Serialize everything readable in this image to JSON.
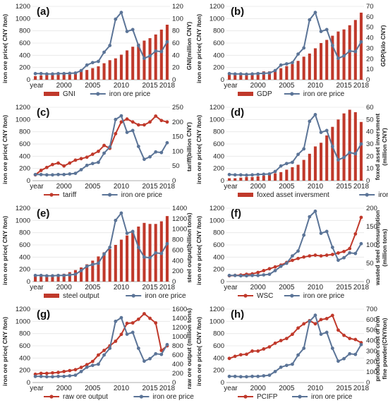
{
  "colors": {
    "red": "#c0392b",
    "blue": "#5b7497",
    "grid": "#e6e6e6"
  },
  "chart_data": [
    {
      "panel": "(a)",
      "type": "bar+line",
      "x_ticks": [
        "year",
        "2000",
        "2005",
        "2010",
        "2015",
        "2018"
      ],
      "left_axis": {
        "label": "iron ore price( CNY /ton)",
        "ticks": [
          "0",
          "200",
          "400",
          "600",
          "800",
          "1000",
          "1200"
        ],
        "range": [
          0,
          1200
        ]
      },
      "right_axis": {
        "label": "GNI(million CNY)",
        "ticks": [
          "0",
          "20",
          "40",
          "60",
          "80",
          "100",
          "120"
        ],
        "range": [
          0,
          120
        ]
      },
      "years": [
        1995,
        1996,
        1997,
        1998,
        1999,
        2000,
        2001,
        2002,
        2003,
        2004,
        2005,
        2006,
        2007,
        2008,
        2009,
        2010,
        2011,
        2012,
        2013,
        2014,
        2015,
        2016,
        2017,
        2018
      ],
      "series": [
        {
          "name": "GNI",
          "kind": "bar",
          "axis": "right",
          "values": [
            6,
            7,
            8,
            8,
            9,
            10,
            11,
            12,
            14,
            16,
            19,
            22,
            27,
            32,
            35,
            41,
            48,
            54,
            59,
            64,
            68,
            74,
            82,
            90
          ]
        },
        {
          "name": "iron ore price",
          "kind": "line",
          "axis": "left",
          "values": [
            100,
            100,
            95,
            95,
            100,
            100,
            105,
            110,
            150,
            240,
            280,
            300,
            450,
            560,
            990,
            1100,
            790,
            820,
            560,
            350,
            390,
            470,
            460,
            620
          ]
        }
      ]
    },
    {
      "panel": "(b)",
      "type": "bar+line",
      "x_ticks": [
        "year",
        "2000",
        "2005",
        "2010",
        "2015",
        "2018"
      ],
      "left_axis": {
        "label": "iron ore price( CNY /ton)",
        "ticks": [
          "0",
          "200",
          "400",
          "600",
          "800",
          "1000",
          "1200"
        ],
        "range": [
          0,
          1200
        ]
      },
      "right_axis": {
        "label": "GDP(kilo CNY)",
        "ticks": [
          "0",
          "10",
          "20",
          "30",
          "40",
          "50",
          "60",
          "70"
        ],
        "range": [
          0,
          70
        ]
      },
      "years": [
        1995,
        1996,
        1997,
        1998,
        1999,
        2000,
        2001,
        2002,
        2003,
        2004,
        2005,
        2006,
        2007,
        2008,
        2009,
        2010,
        2011,
        2012,
        2013,
        2014,
        2015,
        2016,
        2017,
        2018
      ],
      "series": [
        {
          "name": "GDP",
          "kind": "bar",
          "axis": "right",
          "values": [
            5,
            5,
            6,
            6,
            6,
            7,
            8,
            8,
            9,
            11,
            13,
            15,
            18,
            22,
            25,
            30,
            35,
            38,
            42,
            46,
            48,
            52,
            57,
            64
          ]
        },
        {
          "name": "iron ore price",
          "kind": "line",
          "axis": "left",
          "values": [
            100,
            95,
            95,
            90,
            95,
            100,
            105,
            110,
            150,
            240,
            260,
            280,
            420,
            520,
            980,
            1100,
            790,
            820,
            560,
            350,
            390,
            470,
            460,
            620
          ]
        }
      ]
    },
    {
      "panel": "(c)",
      "type": "line+line",
      "x_ticks": [
        "year",
        "2000",
        "2005",
        "2010",
        "2015",
        "2018"
      ],
      "left_axis": {
        "label": "iron ore price( CNY /ton)",
        "ticks": [
          "0",
          "200",
          "400",
          "600",
          "800",
          "1000",
          "1200"
        ],
        "range": [
          0,
          1200
        ]
      },
      "right_axis": {
        "label": "tariff(billion CNY)",
        "ticks": [
          "0",
          "50",
          "100",
          "150",
          "200",
          "250"
        ],
        "range": [
          0,
          250
        ]
      },
      "years": [
        1995,
        1996,
        1997,
        1998,
        1999,
        2000,
        2001,
        2002,
        2003,
        2004,
        2005,
        2006,
        2007,
        2008,
        2009,
        2010,
        2011,
        2012,
        2013,
        2014,
        2015,
        2016,
        2017,
        2018
      ],
      "series": [
        {
          "name": "tariff",
          "kind": "line",
          "axis": "right",
          "values": [
            20,
            35,
            45,
            55,
            60,
            50,
            60,
            70,
            75,
            80,
            90,
            100,
            120,
            110,
            160,
            200,
            210,
            200,
            190,
            190,
            200,
            220,
            205,
            200
          ]
        },
        {
          "name": "iron ore price",
          "kind": "line",
          "axis": "left",
          "values": [
            100,
            100,
            95,
            95,
            100,
            100,
            110,
            120,
            180,
            250,
            280,
            300,
            450,
            550,
            1000,
            1060,
            790,
            820,
            560,
            350,
            390,
            470,
            460,
            620
          ]
        }
      ]
    },
    {
      "panel": "(d)",
      "type": "bar+line",
      "x_ticks": [
        "year",
        "2000",
        "2005",
        "2010",
        "2015",
        "2018"
      ],
      "left_axis": {
        "label": "iron ore price( CNY /ton)",
        "ticks": [
          "0",
          "200",
          "400",
          "600",
          "800",
          "1000",
          "1200"
        ],
        "range": [
          0,
          1200
        ]
      },
      "right_axis": {
        "label": "foxed asset inversment\n(million CNY)",
        "ticks": [
          "0",
          "10",
          "20",
          "30",
          "40",
          "50",
          "60"
        ],
        "range": [
          0,
          60
        ]
      },
      "years": [
        1995,
        1996,
        1997,
        1998,
        1999,
        2000,
        2001,
        2002,
        2003,
        2004,
        2005,
        2006,
        2007,
        2008,
        2009,
        2010,
        2011,
        2012,
        2013,
        2014,
        2015,
        2016,
        2017,
        2018
      ],
      "series": [
        {
          "name": "foxed asset inversment",
          "kind": "bar",
          "axis": "right",
          "values": [
            2,
            2,
            2.5,
            3,
            3,
            3.5,
            4,
            5,
            6,
            7,
            9,
            11,
            13,
            17,
            22,
            28,
            31,
            37,
            44,
            50,
            55,
            58,
            56,
            48
          ]
        },
        {
          "name": "iron ore price",
          "kind": "line",
          "axis": "left",
          "values": [
            100,
            95,
            95,
            90,
            95,
            100,
            105,
            110,
            150,
            240,
            280,
            300,
            430,
            520,
            970,
            1080,
            790,
            820,
            560,
            340,
            380,
            460,
            440,
            600
          ]
        }
      ]
    },
    {
      "panel": "(e)",
      "type": "bar+line",
      "x_ticks": [
        "year",
        "2000",
        "2005",
        "2010",
        "2015",
        "2018"
      ],
      "left_axis": {
        "label": "iron ore price( CNY /ton)",
        "ticks": [
          "0",
          "200",
          "400",
          "600",
          "800",
          "1000",
          "1200"
        ],
        "range": [
          0,
          1200
        ]
      },
      "right_axis": {
        "label": "steel output(billion tons)",
        "ticks": [
          "0",
          "200",
          "400",
          "600",
          "800",
          "1000",
          "1200",
          "1400"
        ],
        "range": [
          0,
          1400
        ]
      },
      "years": [
        1995,
        1996,
        1997,
        1998,
        1999,
        2000,
        2001,
        2002,
        2003,
        2004,
        2005,
        2006,
        2007,
        2008,
        2009,
        2010,
        2011,
        2012,
        2013,
        2014,
        2015,
        2016,
        2017,
        2018
      ],
      "series": [
        {
          "name": "steel output",
          "kind": "bar",
          "axis": "right",
          "values": [
            100,
            110,
            120,
            130,
            140,
            150,
            180,
            220,
            270,
            330,
            400,
            480,
            560,
            620,
            700,
            800,
            880,
            950,
            1050,
            1120,
            1100,
            1100,
            1150,
            1250
          ]
        },
        {
          "name": "iron ore price",
          "kind": "line",
          "axis": "left",
          "values": [
            100,
            100,
            95,
            95,
            100,
            100,
            110,
            120,
            180,
            250,
            280,
            300,
            450,
            560,
            1000,
            1120,
            790,
            820,
            560,
            400,
            390,
            470,
            460,
            620
          ]
        }
      ]
    },
    {
      "panel": "(f)",
      "type": "line+line",
      "x_ticks": [
        "year",
        "2000",
        "2005",
        "2010",
        "2015",
        "2018"
      ],
      "left_axis": {
        "label": "iron ore price( CNY /ton)",
        "ticks": [
          "0",
          "200",
          "400",
          "600",
          "800",
          "1000",
          "1200"
        ],
        "range": [
          0,
          1200
        ]
      },
      "right_axis": {
        "label": "wasted steel consumption\n(million tons)",
        "ticks": [
          "0",
          "50",
          "100",
          "150",
          "200"
        ],
        "range": [
          0,
          200
        ]
      },
      "years": [
        1995,
        1996,
        1997,
        1998,
        1999,
        2000,
        2001,
        2002,
        2003,
        2004,
        2005,
        2006,
        2007,
        2008,
        2009,
        2010,
        2011,
        2012,
        2013,
        2014,
        2015,
        2016,
        2017,
        2018
      ],
      "series": [
        {
          "name": "WSC",
          "kind": "line",
          "axis": "right",
          "values": [
            16,
            17,
            18,
            20,
            21,
            25,
            30,
            35,
            40,
            45,
            52,
            58,
            63,
            67,
            70,
            72,
            70,
            72,
            74,
            78,
            82,
            90,
            130,
            175
          ]
        },
        {
          "name": "iron ore price",
          "kind": "line",
          "axis": "left",
          "values": [
            100,
            100,
            95,
            95,
            100,
            100,
            110,
            120,
            180,
            250,
            300,
            420,
            500,
            760,
            1060,
            1150,
            790,
            820,
            560,
            350,
            390,
            470,
            460,
            620
          ]
        }
      ]
    },
    {
      "panel": "(g)",
      "type": "line+line",
      "x_ticks": [
        "year",
        "2000",
        "2005",
        "2010",
        "2015",
        "2018"
      ],
      "left_axis": {
        "label": "iron ore price( CNY /ton)",
        "ticks": [
          "0",
          "200",
          "400",
          "600",
          "800",
          "1000",
          "1200"
        ],
        "range": [
          0,
          1200
        ]
      },
      "right_axis": {
        "label": "raw ore output (million tons)",
        "ticks": [
          "0",
          "200",
          "400",
          "600",
          "800",
          "1000",
          "1200",
          "1400",
          "1600"
        ],
        "range": [
          0,
          1600
        ]
      },
      "years": [
        1995,
        1996,
        1997,
        1998,
        1999,
        2000,
        2001,
        2002,
        2003,
        2004,
        2005,
        2006,
        2007,
        2008,
        2009,
        2010,
        2011,
        2012,
        2013,
        2014,
        2015,
        2016,
        2017,
        2018
      ],
      "series": [
        {
          "name": "raw ore output",
          "kind": "line",
          "axis": "right",
          "values": [
            180,
            200,
            200,
            210,
            220,
            240,
            260,
            280,
            330,
            390,
            460,
            600,
            700,
            800,
            900,
            1050,
            1290,
            1300,
            1380,
            1500,
            1400,
            1300,
            700,
            800
          ]
        },
        {
          "name": "iron ore price",
          "kind": "line",
          "axis": "left",
          "values": [
            100,
            100,
            95,
            95,
            100,
            100,
            110,
            120,
            180,
            250,
            280,
            300,
            450,
            560,
            1000,
            1060,
            790,
            820,
            560,
            350,
            390,
            470,
            460,
            620
          ]
        }
      ]
    },
    {
      "panel": "(h)",
      "type": "line+line",
      "x_ticks": [
        "year",
        "2000",
        "2005",
        "2010",
        "2015",
        "2018"
      ],
      "left_axis": {
        "label": "iron ore price( CNY /ton)",
        "ticks": [
          "0",
          "200",
          "400",
          "600",
          "800",
          "1000",
          "1200"
        ],
        "range": [
          0,
          1200
        ]
      },
      "right_axis": {
        "label": "production cost of iron\nfine powder(CNY/ton)",
        "ticks": [
          "0",
          "100",
          "200",
          "300",
          "400",
          "500",
          "600",
          "700"
        ],
        "range": [
          0,
          700
        ]
      },
      "years": [
        1995,
        1996,
        1997,
        1998,
        1999,
        2000,
        2001,
        2002,
        2003,
        2004,
        2005,
        2006,
        2007,
        2008,
        2009,
        2010,
        2011,
        2012,
        2013,
        2014,
        2015,
        2016,
        2017,
        2018
      ],
      "series": [
        {
          "name": "PCIFP",
          "kind": "line",
          "axis": "right",
          "values": [
            230,
            250,
            265,
            270,
            300,
            300,
            320,
            340,
            375,
            400,
            420,
            460,
            520,
            560,
            590,
            560,
            600,
            610,
            640,
            500,
            450,
            420,
            410,
            380
          ]
        },
        {
          "name": "iron ore price",
          "kind": "line",
          "axis": "left",
          "values": [
            100,
            100,
            95,
            95,
            100,
            100,
            110,
            120,
            180,
            250,
            280,
            300,
            450,
            560,
            1000,
            1100,
            790,
            820,
            560,
            350,
            390,
            470,
            460,
            620
          ]
        }
      ]
    }
  ]
}
